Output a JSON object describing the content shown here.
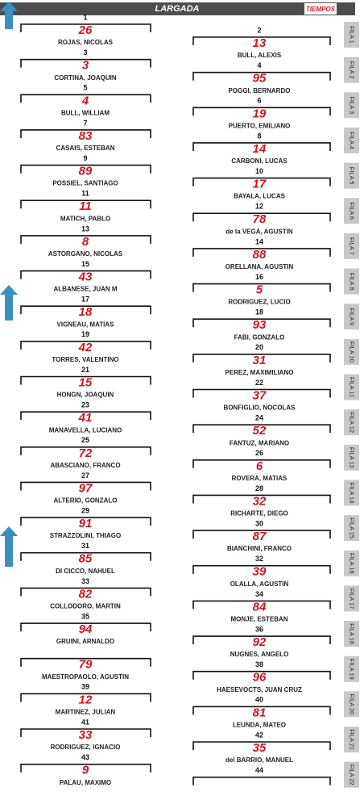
{
  "header": {
    "title": "LARGADA",
    "logo": "TIEMPOS"
  },
  "rows": [
    {
      "fila": "FILA 1",
      "left": {
        "pos": "1",
        "car": "26",
        "name": "ROJAS, NICOLAS"
      },
      "right": {
        "pos": "2",
        "car": "13",
        "name": "BULL, ALEXIS"
      }
    },
    {
      "fila": "FILA 2",
      "left": {
        "pos": "3",
        "car": "3",
        "name": "CORTINA, JOAQUIN"
      },
      "right": {
        "pos": "4",
        "car": "95",
        "name": "POGGI, BERNARDO"
      }
    },
    {
      "fila": "FILA 3",
      "left": {
        "pos": "5",
        "car": "4",
        "name": "BULL, WILLIAM"
      },
      "right": {
        "pos": "6",
        "car": "19",
        "name": "PUERTO, EMILIANO"
      }
    },
    {
      "fila": "FILA 4",
      "left": {
        "pos": "7",
        "car": "83",
        "name": "CASAIS, ESTEBAN"
      },
      "right": {
        "pos": "8",
        "car": "14",
        "name": "CARBONI, LUCAS"
      }
    },
    {
      "fila": "FILA 5",
      "left": {
        "pos": "9",
        "car": "89",
        "name": "POSSIEL, SANTIAGO"
      },
      "right": {
        "pos": "10",
        "car": "17",
        "name": "BAYALA, LUCAS"
      }
    },
    {
      "fila": "FILA 6",
      "left": {
        "pos": "11",
        "car": "11",
        "name": "MATICH, PABLO"
      },
      "right": {
        "pos": "12",
        "car": "78",
        "name": "de la VEGA, AGUSTIN"
      }
    },
    {
      "fila": "FILA 7",
      "left": {
        "pos": "13",
        "car": "8",
        "name": "ASTORGANO, NICOLAS"
      },
      "right": {
        "pos": "14",
        "car": "88",
        "name": "ORELLANA, AGUSTIN"
      }
    },
    {
      "fila": "FILA 8",
      "left": {
        "pos": "15",
        "car": "43",
        "name": "ALBANESE, JUAN M"
      },
      "right": {
        "pos": "16",
        "car": "5",
        "name": "RODRIGUEZ, LUCIO"
      }
    },
    {
      "fila": "FILA 9",
      "left": {
        "pos": "17",
        "car": "18",
        "name": "VIGNEAU, MATIAS"
      },
      "right": {
        "pos": "18",
        "car": "93",
        "name": "FABI, GONZALO"
      }
    },
    {
      "fila": "FILA 10",
      "left": {
        "pos": "19",
        "car": "42",
        "name": "TORRES, VALENTINO"
      },
      "right": {
        "pos": "20",
        "car": "31",
        "name": "PEREZ, MAXIMILIANO"
      }
    },
    {
      "fila": "FILA 11",
      "left": {
        "pos": "21",
        "car": "15",
        "name": "HONGN, JOAQUIN"
      },
      "right": {
        "pos": "22",
        "car": "37",
        "name": "BONFIGLIO, NOCOLAS"
      }
    },
    {
      "fila": "FILA 12",
      "left": {
        "pos": "23",
        "car": "41",
        "name": "MANAVELLA, LUCIANO"
      },
      "right": {
        "pos": "24",
        "car": "52",
        "name": "FANTUZ, MARIANO"
      }
    },
    {
      "fila": "FILA 13",
      "left": {
        "pos": "25",
        "car": "72",
        "name": "ABASCIANO, FRANCO"
      },
      "right": {
        "pos": "26",
        "car": "6",
        "name": "ROVERA, MATIAS"
      }
    },
    {
      "fila": "FILA 14",
      "left": {
        "pos": "27",
        "car": "97",
        "name": "ALTERIO, GONZALO"
      },
      "right": {
        "pos": "28",
        "car": "32",
        "name": "RICHARTE, DIEGO"
      }
    },
    {
      "fila": "FILA 15",
      "left": {
        "pos": "29",
        "car": "91",
        "name": "STRAZZOLINI, THIAGO"
      },
      "right": {
        "pos": "30",
        "car": "87",
        "name": "BIANCHINI, FRANCO"
      }
    },
    {
      "fila": "FILA 16",
      "left": {
        "pos": "31",
        "car": "85",
        "name": "DI CICCO, NAHUEL"
      },
      "right": {
        "pos": "32",
        "car": "39",
        "name": "OLALLA, AGUSTIN"
      }
    },
    {
      "fila": "FILA 17",
      "left": {
        "pos": "33",
        "car": "82",
        "name": "COLLODORO, MARTIN"
      },
      "right": {
        "pos": "34",
        "car": "84",
        "name": "MONJE, ESTEBAN"
      }
    },
    {
      "fila": "FILA 18",
      "left": {
        "pos": "35",
        "car": "94",
        "name": "GRUINI, ARNALDO"
      },
      "right": {
        "pos": "36",
        "car": "92",
        "name": "NUGNES, ANGELO"
      }
    },
    {
      "fila": "FILA 19",
      "left": {
        "car": "79",
        "name": "MAESTROPAOLO, AGUSTIN"
      },
      "right": {
        "pos": "38",
        "car": "96",
        "name": "HAESEVOCTS, JUAN CRUZ"
      }
    },
    {
      "fila": "FILA 20",
      "left": {
        "pos": "39",
        "car": "12",
        "name": "MARTINEZ, JULIAN"
      },
      "right": {
        "pos": "40",
        "car": "81",
        "name": "LEUNDA, MATEO"
      }
    },
    {
      "fila": "FILA 21",
      "left": {
        "pos": "41",
        "car": "33",
        "name": "RODRIGUEZ, IGNACIO"
      },
      "right": {
        "pos": "42",
        "car": "35",
        "name": "del BARRIO, MANUEL"
      }
    },
    {
      "fila": "FILA 22",
      "left": {
        "pos": "43",
        "car": "9",
        "name": "PALAU, MAXIMO"
      },
      "right": {
        "pos": "44"
      }
    }
  ]
}
